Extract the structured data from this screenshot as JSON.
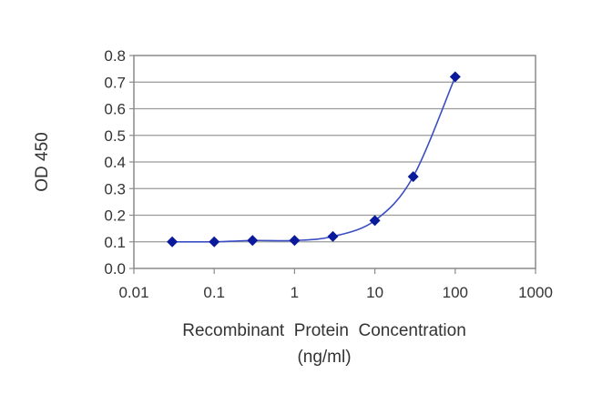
{
  "chart_data": {
    "type": "line",
    "xlabel": "Recombinant  Protein  Concentration",
    "xlabel_unit": "(ng/ml)",
    "ylabel": "OD 450",
    "x_scale": "log",
    "xlim": [
      0.01,
      1000
    ],
    "ylim": [
      0.0,
      0.8
    ],
    "x_ticks": [
      "0.01",
      "0.1",
      "1",
      "10",
      "100",
      "1000"
    ],
    "y_ticks": [
      "0.0",
      "0.1",
      "0.2",
      "0.3",
      "0.4",
      "0.5",
      "0.6",
      "0.7",
      "0.8"
    ],
    "grid": "horizontal",
    "series": [
      {
        "x": [
          0.03,
          0.1,
          0.3,
          1,
          3,
          10,
          30,
          100
        ],
        "y": [
          0.1,
          0.1,
          0.105,
          0.105,
          0.12,
          0.18,
          0.345,
          0.72
        ]
      }
    ],
    "colors": {
      "line": "#3a4fc4",
      "marker": "#0a1a9a",
      "grid": "#9a9a9a",
      "axis": "#8a8a8a"
    }
  }
}
